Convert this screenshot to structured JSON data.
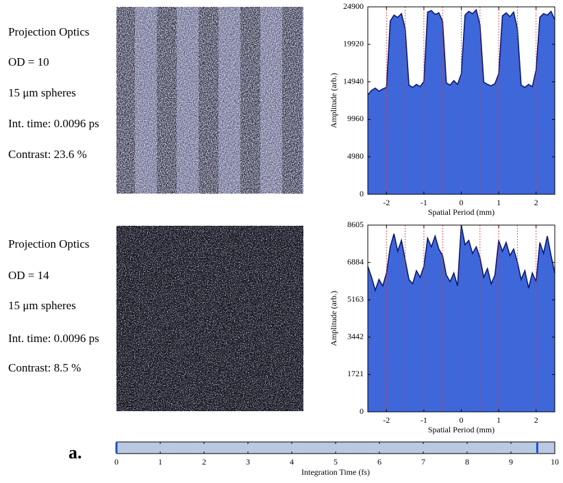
{
  "label": "a.",
  "chart_data": [
    {
      "type": "area",
      "annotations": [
        "Projection Optics",
        "OD = 10",
        "15 μm spheres",
        "Int. time: 0.0096 ps",
        "Contrast: 23.6 %"
      ],
      "xlabel": "Spatial Period (mm)",
      "ylabel": "Amplitude (arb.)",
      "xlim": [
        -2.5,
        2.5
      ],
      "ylim": [
        0,
        24900
      ],
      "xticks": [
        -2,
        -1,
        0,
        1,
        2
      ],
      "yticks": [
        0,
        4980,
        9960,
        14940,
        19920,
        24900
      ],
      "vlines": [
        -2,
        -1.5,
        -1,
        -0.5,
        0,
        0.5,
        1,
        1.5,
        2
      ],
      "vline_color": "#e03a3a",
      "color": "#3e67da",
      "line_color": "#0c1870",
      "x": [
        -2.5,
        -2.4,
        -2.3,
        -2.2,
        -2.1,
        -2.0,
        -1.9,
        -1.8,
        -1.7,
        -1.6,
        -1.5,
        -1.4,
        -1.3,
        -1.2,
        -1.1,
        -1.0,
        -0.9,
        -0.8,
        -0.7,
        -0.6,
        -0.5,
        -0.4,
        -0.3,
        -0.2,
        -0.1,
        0.0,
        0.1,
        0.2,
        0.3,
        0.4,
        0.5,
        0.6,
        0.7,
        0.8,
        0.9,
        1.0,
        1.1,
        1.2,
        1.3,
        1.4,
        1.5,
        1.6,
        1.7,
        1.8,
        1.9,
        2.0,
        2.1,
        2.2,
        2.3,
        2.4,
        2.5
      ],
      "values": [
        13200,
        13800,
        14100,
        13700,
        14000,
        14200,
        23000,
        23800,
        23500,
        24000,
        22000,
        14500,
        14200,
        14600,
        14300,
        15000,
        24200,
        24400,
        23900,
        24100,
        23000,
        14800,
        14500,
        15100,
        14600,
        16000,
        23800,
        24300,
        24000,
        24500,
        22500,
        14900,
        14600,
        14400,
        14700,
        16000,
        23700,
        24100,
        23600,
        24200,
        22000,
        14500,
        14200,
        14600,
        14300,
        16500,
        23500,
        24000,
        23800,
        24300,
        23200
      ]
    },
    {
      "type": "area",
      "annotations": [
        "Projection Optics",
        "OD = 14",
        "15 μm spheres",
        "Int. time: 0.0096 ps",
        "Contrast: 8.5 %"
      ],
      "xlabel": "Spatial Period (mm)",
      "ylabel": "Amplitude (arb.)",
      "xlim": [
        -2.5,
        2.5
      ],
      "ylim": [
        0,
        8605
      ],
      "xticks": [
        -2,
        -1,
        0,
        1,
        2
      ],
      "yticks": [
        0,
        1721,
        3442,
        5163,
        6884,
        8605
      ],
      "vlines": [
        -2,
        -1.5,
        -1,
        -0.5,
        0,
        0.5,
        1,
        1.5,
        2
      ],
      "vline_color": "#e03a3a",
      "color": "#3e67da",
      "line_color": "#0c1870",
      "x": [
        -2.5,
        -2.4,
        -2.3,
        -2.2,
        -2.1,
        -2.0,
        -1.9,
        -1.8,
        -1.7,
        -1.6,
        -1.5,
        -1.4,
        -1.3,
        -1.2,
        -1.1,
        -1.0,
        -0.9,
        -0.8,
        -0.7,
        -0.6,
        -0.5,
        -0.4,
        -0.3,
        -0.2,
        -0.1,
        0.0,
        0.1,
        0.2,
        0.3,
        0.4,
        0.5,
        0.6,
        0.7,
        0.8,
        0.9,
        1.0,
        1.1,
        1.2,
        1.3,
        1.4,
        1.5,
        1.6,
        1.7,
        1.8,
        1.9,
        2.0,
        2.1,
        2.2,
        2.3,
        2.4,
        2.5
      ],
      "values": [
        6700,
        6200,
        5600,
        6100,
        5800,
        6400,
        7600,
        8200,
        7400,
        7900,
        7000,
        6100,
        5900,
        6500,
        6200,
        6700,
        8000,
        7600,
        8100,
        7500,
        7200,
        6300,
        6000,
        6400,
        5800,
        8600,
        7700,
        7900,
        7300,
        7600,
        7100,
        6200,
        6600,
        5900,
        6300,
        7900,
        7400,
        7800,
        7200,
        7500,
        6900,
        6100,
        6500,
        5700,
        6400,
        6000,
        7800,
        7300,
        8100,
        7200,
        6400
      ]
    },
    {
      "type": "slider",
      "xlabel": "Integration Time (fs)",
      "xlim": [
        0,
        10
      ],
      "xticks": [
        0,
        1,
        2,
        3,
        4,
        5,
        6,
        7,
        8,
        9,
        10
      ],
      "values": [
        0,
        9.6
      ],
      "color": "#1a4fd0",
      "track_color": "#b9c9e2"
    }
  ]
}
